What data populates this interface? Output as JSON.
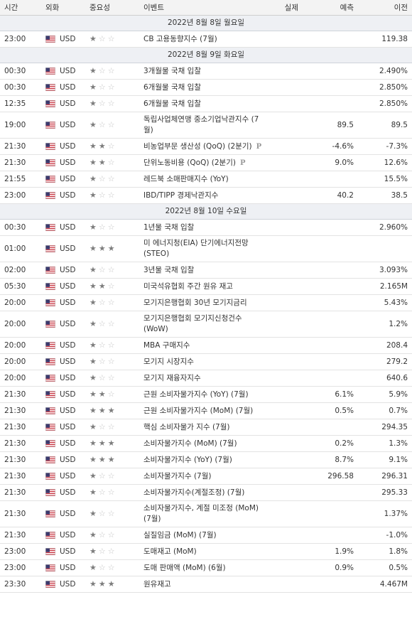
{
  "header": {
    "columns": [
      "시간",
      "외화",
      "중요성",
      "이벤트",
      "실제",
      "예측",
      "이전"
    ]
  },
  "sections": [
    {
      "date": "2022년 8월 8일 월요일",
      "rows": [
        {
          "time": "23:00",
          "currency": "USD",
          "importance": 1,
          "event": "CB 고용동향지수 (7월)",
          "previous": "119.38"
        }
      ]
    },
    {
      "date": "2022년 8월 9일 화요일",
      "rows": [
        {
          "time": "00:30",
          "currency": "USD",
          "importance": 1,
          "event": "3개월물 국채 입찰",
          "previous": "2.490%"
        },
        {
          "time": "00:30",
          "currency": "USD",
          "importance": 1,
          "event": "6개월물 국채 입찰",
          "previous": "2.850%"
        },
        {
          "time": "12:35",
          "currency": "USD",
          "importance": 1,
          "event": "6개월물 국채 입찰",
          "previous": "2.850%"
        },
        {
          "time": "19:00",
          "currency": "USD",
          "importance": 1,
          "event": "독립사업체연맹 중소기업낙관지수 (7월)",
          "forecast": "89.5",
          "previous": "89.5"
        },
        {
          "time": "21:30",
          "currency": "USD",
          "importance": 2,
          "event": "비농업부문 생산성 (QoQ) (2분기)",
          "badge": "P",
          "forecast": "-4.6%",
          "previous": "-7.3%"
        },
        {
          "time": "21:30",
          "currency": "USD",
          "importance": 2,
          "event": "단위노동비용 (QoQ) (2분기)",
          "badge": "P",
          "forecast": "9.0%",
          "previous": "12.6%"
        },
        {
          "time": "21:55",
          "currency": "USD",
          "importance": 1,
          "event": "레드북 소매판매지수 (YoY)",
          "previous": "15.5%"
        },
        {
          "time": "23:00",
          "currency": "USD",
          "importance": 1,
          "event": "IBD/TIPP 경제낙관지수",
          "forecast": "40.2",
          "previous": "38.5"
        }
      ]
    },
    {
      "date": "2022년 8월 10일 수요일",
      "rows": [
        {
          "time": "00:30",
          "currency": "USD",
          "importance": 1,
          "event": "1년물 국채 입찰",
          "previous": "2.960%"
        },
        {
          "time": "01:00",
          "currency": "USD",
          "importance": 3,
          "event": "미 에너지청(EIA) 단기에너지전망(STEO)"
        },
        {
          "time": "02:00",
          "currency": "USD",
          "importance": 1,
          "event": "3년물 국채 입찰",
          "previous": "3.093%"
        },
        {
          "time": "05:30",
          "currency": "USD",
          "importance": 2,
          "event": "미국석유협회 주간 원유 재고",
          "previous": "2.165M"
        },
        {
          "time": "20:00",
          "currency": "USD",
          "importance": 1,
          "event": "모기지은행협회 30년 모기지금리",
          "previous": "5.43%"
        },
        {
          "time": "20:00",
          "currency": "USD",
          "importance": 1,
          "event": "모기지은행협회 모기지신청건수 (WoW)",
          "previous": "1.2%"
        },
        {
          "time": "20:00",
          "currency": "USD",
          "importance": 1,
          "event": "MBA 구매지수",
          "previous": "208.4"
        },
        {
          "time": "20:00",
          "currency": "USD",
          "importance": 1,
          "event": "모기지 시장지수",
          "previous": "279.2"
        },
        {
          "time": "20:00",
          "currency": "USD",
          "importance": 1,
          "event": "모기지 재융자지수",
          "previous": "640.6"
        },
        {
          "time": "21:30",
          "currency": "USD",
          "importance": 2,
          "event": "근원 소비자물가지수 (YoY) (7월)",
          "forecast": "6.1%",
          "previous": "5.9%"
        },
        {
          "time": "21:30",
          "currency": "USD",
          "importance": 3,
          "event": "근원 소비자물가지수 (MoM) (7월)",
          "forecast": "0.5%",
          "previous": "0.7%"
        },
        {
          "time": "21:30",
          "currency": "USD",
          "importance": 1,
          "event": "핵심 소비자물가 지수 (7월)",
          "previous": "294.35"
        },
        {
          "time": "21:30",
          "currency": "USD",
          "importance": 3,
          "event": "소비자물가지수 (MoM) (7월)",
          "forecast": "0.2%",
          "previous": "1.3%"
        },
        {
          "time": "21:30",
          "currency": "USD",
          "importance": 3,
          "event": "소비자물가지수 (YoY) (7월)",
          "forecast": "8.7%",
          "previous": "9.1%"
        },
        {
          "time": "21:30",
          "currency": "USD",
          "importance": 1,
          "event": "소비자물가지수 (7월)",
          "forecast": "296.58",
          "previous": "296.31"
        },
        {
          "time": "21:30",
          "currency": "USD",
          "importance": 1,
          "event": "소비자물가지수(계절조정) (7월)",
          "previous": "295.33"
        },
        {
          "time": "21:30",
          "currency": "USD",
          "importance": 1,
          "event": "소비자물가지수, 계절 미조정 (MoM) (7월)",
          "previous": "1.37%"
        },
        {
          "time": "21:30",
          "currency": "USD",
          "importance": 1,
          "event": "실질임금 (MoM) (7월)",
          "previous": "-1.0%"
        },
        {
          "time": "23:00",
          "currency": "USD",
          "importance": 1,
          "event": "도매재고 (MoM)",
          "forecast": "1.9%",
          "previous": "1.8%"
        },
        {
          "time": "23:00",
          "currency": "USD",
          "importance": 1,
          "event": "도매 판매액 (MoM) (6월)",
          "forecast": "0.9%",
          "previous": "0.5%"
        },
        {
          "time": "23:30",
          "currency": "USD",
          "importance": 3,
          "event": "원유재고",
          "previous": "4.467M"
        }
      ]
    }
  ]
}
